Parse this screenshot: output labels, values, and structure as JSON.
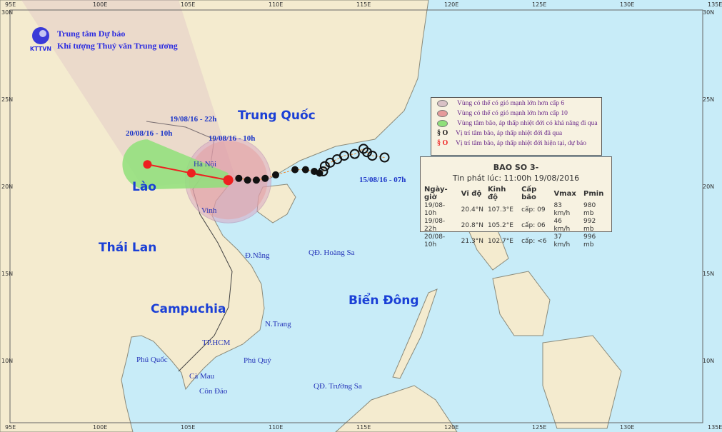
{
  "header": {
    "org_line1": "Trung tâm Dự báo",
    "org_line2": "Khí tượng Thuỷ văn Trung ương",
    "logo_text": "KTTVN"
  },
  "axes": {
    "lon_labels": [
      "95E",
      "100E",
      "105E",
      "110E",
      "115E",
      "120E",
      "125E",
      "130E",
      "135E"
    ],
    "lat_labels": [
      "30N",
      "25N",
      "20N",
      "15N",
      "10N"
    ]
  },
  "places": {
    "countries": [
      "Trung Quốc",
      "Lào",
      "Thái Lan",
      "Campuchia",
      "Biển Đông"
    ],
    "cities": [
      "Hà Nội",
      "Vinh",
      "Đ.Nẵng",
      "QĐ. Hoàng Sa",
      "N.Trang",
      "TP.HCM",
      "Phú Quốc",
      "Phú Quý",
      "Cà Mau",
      "Côn Đảo",
      "QĐ. Trường Sa"
    ]
  },
  "track": {
    "labels": [
      "19/08/16 - 22h",
      "20/08/16 - 10h",
      "19/08/16 - 10h",
      "15/08/16 - 07h"
    ],
    "forecast": [
      {
        "lon": 107.3,
        "lat": 20.4
      },
      {
        "lon": 105.2,
        "lat": 20.8
      },
      {
        "lon": 102.7,
        "lat": 21.3
      }
    ],
    "past": [
      [
        116.2,
        21.7
      ],
      [
        115.5,
        21.8
      ],
      [
        115.2,
        22.0
      ],
      [
        115.0,
        22.2
      ],
      [
        114.5,
        21.9
      ],
      [
        113.9,
        21.8
      ],
      [
        113.5,
        21.6
      ],
      [
        113.1,
        21.4
      ],
      [
        112.8,
        21.2
      ],
      [
        112.7,
        20.9
      ],
      [
        112.5,
        20.8
      ],
      [
        112.2,
        20.9
      ],
      [
        111.7,
        21.0
      ],
      [
        111.1,
        21.0
      ],
      [
        110.0,
        20.7
      ],
      [
        109.4,
        20.5
      ],
      [
        108.9,
        20.4
      ],
      [
        108.4,
        20.4
      ],
      [
        107.9,
        20.5
      ]
    ]
  },
  "legend": {
    "items": [
      {
        "label": "Vùng có thể có gió mạnh lớn hơn cấp 6",
        "color": "#d9c1c6"
      },
      {
        "label": "Vùng có thể có gió mạnh lớn hơn cấp 10",
        "color": "#e59a9a"
      },
      {
        "label": "Vùng tâm bão, áp thấp nhiệt đới có khả năng đi qua",
        "color": "#8fe07a"
      },
      {
        "label": "Vị trí tâm bão, áp thấp nhiệt đới đã qua",
        "color": "#111111"
      },
      {
        "label": "Vị trí tâm bão, áp thấp nhiệt đới hiện tại, dự báo",
        "color": "#ee2020"
      }
    ]
  },
  "info": {
    "title": "BAO SO 3-",
    "issued": "Tin phát lúc: 11:00h 19/08/2016",
    "columns": [
      "Ngày-giờ",
      "Vĩ độ",
      "Kinh độ",
      "Cấp bão",
      "Vmax",
      "Pmin"
    ],
    "rows": [
      [
        "19/08-10h",
        "20.4°N",
        "107.3°E",
        "cấp: 09",
        "83 km/h",
        "980 mb"
      ],
      [
        "19/08-22h",
        "20.8°N",
        "105.2°E",
        "cấp: 06",
        "46 km/h",
        "992 mb"
      ],
      [
        "20/08-10h",
        "21.3°N",
        "102.7°E",
        "cấp: <6",
        "37 km/h",
        "996 mb"
      ]
    ]
  },
  "colors": {
    "sea": "#c8ecf8",
    "land": "#f4ebcf",
    "track_forecast": "#ee2020",
    "track_past": "#111111"
  }
}
